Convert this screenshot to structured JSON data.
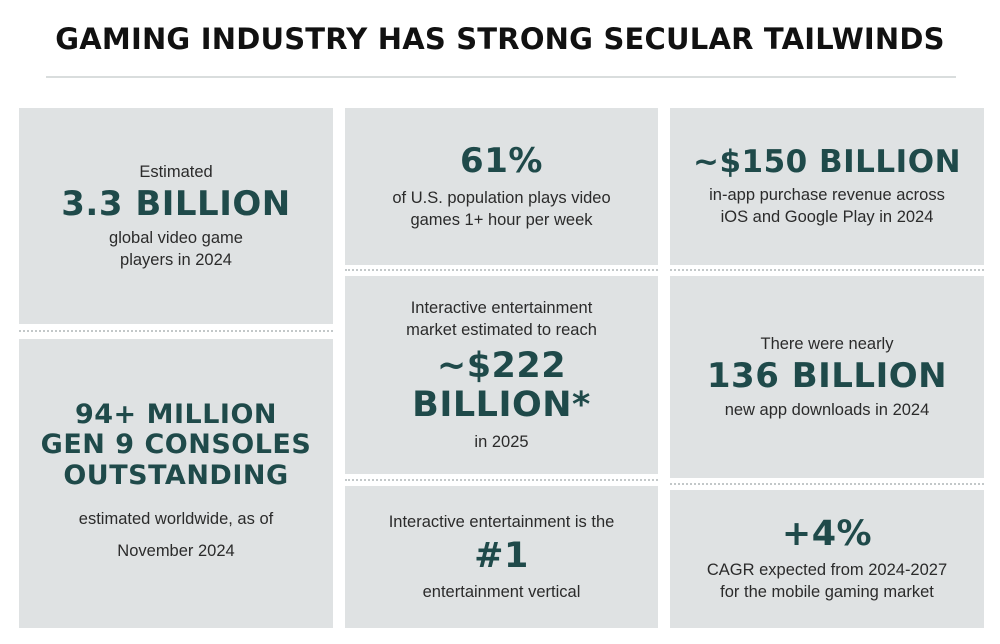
{
  "title": "GAMING INDUSTRY HAS STRONG SECULAR TAILWINDS",
  "tiles": {
    "players": {
      "pre": "Estimated",
      "stat": "3.3 BILLION",
      "desc_line1": "global video game",
      "desc_line2": "players in 2024"
    },
    "consoles": {
      "stat_line1": "94+ MILLION",
      "stat_line2": "GEN 9 CONSOLES",
      "stat_line3": "OUTSTANDING",
      "desc_line1": "estimated worldwide, as of",
      "desc_line2": "November 2024"
    },
    "us_population": {
      "stat": "61%",
      "desc_line1": "of U.S. population plays video",
      "desc_line2": "games 1+ hour per week"
    },
    "market": {
      "pre_line1": "Interactive entertainment",
      "pre_line2": "market estimated to reach",
      "stat_line1": "~$222",
      "stat_line2": "BILLION*",
      "desc": "in 2025"
    },
    "vertical": {
      "pre": "Interactive entertainment is the",
      "stat": "#1",
      "desc": "entertainment vertical"
    },
    "in_app": {
      "stat": "~$150 BILLION",
      "desc_line1": "in-app purchase revenue across",
      "desc_line2": "iOS and Google Play in 2024"
    },
    "downloads": {
      "pre": "There were nearly",
      "stat": "136 BILLION",
      "desc": "new app downloads in 2024"
    },
    "cagr": {
      "stat": "+4%",
      "desc_line1": "CAGR expected from 2024-2027",
      "desc_line2": "for the mobile gaming market"
    }
  }
}
